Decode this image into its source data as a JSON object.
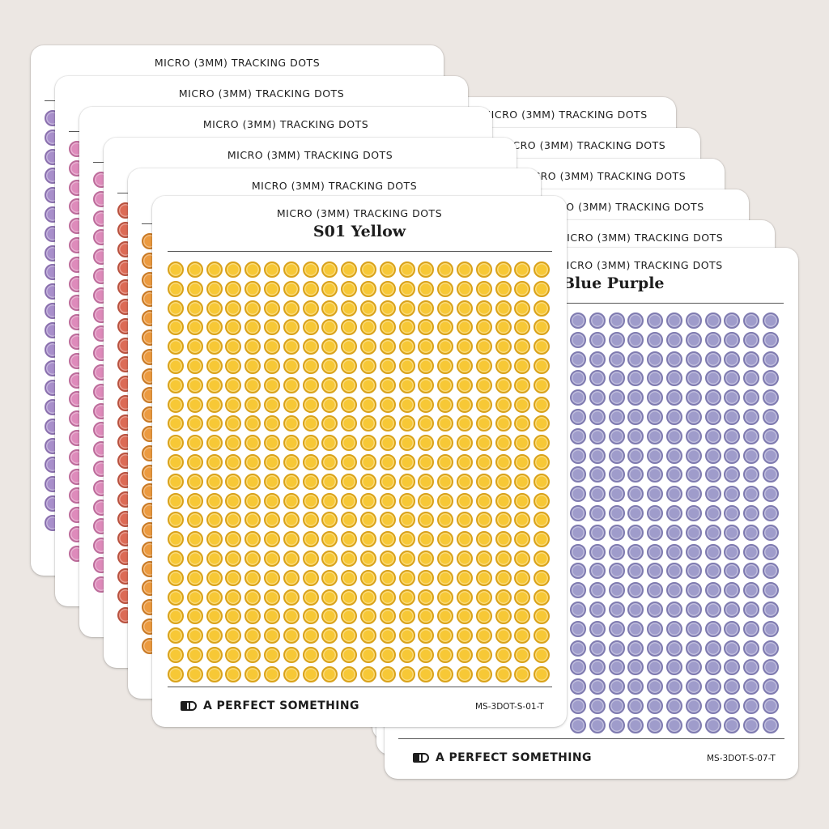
{
  "palette": {
    "yellow": {
      "fill": "#f7c836",
      "ring": "#d9a21b"
    },
    "blue_purple": {
      "fill": "#9f9ccb",
      "ring": "#7f7bb0"
    },
    "orange": {
      "fill": "#ec9a3f",
      "ring": "#c97a26"
    },
    "red": {
      "fill": "#dc6b56",
      "ring": "#b9523f"
    },
    "pink": {
      "fill": "#de8bbb",
      "ring": "#bd6c9b"
    },
    "purple": {
      "fill": "#a88fcb",
      "ring": "#8a70ae"
    }
  },
  "back_sheets_right": [
    {
      "subtitle": "MICRO (3MM) TRACKING DOTS"
    },
    {
      "subtitle": "MICRO (3MM) TRACKING DOTS"
    },
    {
      "subtitle": "MICRO (3MM) TRACKING DOTS"
    },
    {
      "subtitle": "MICRO (3MM) TRACKING DOTS"
    },
    {
      "subtitle": "MICRO (3MM) TRACKING DOTS"
    }
  ],
  "back_sheets_left": [
    {
      "subtitle": "MICRO (3MM) TRACKING DOTS",
      "color": "purple"
    },
    {
      "subtitle": "MICRO (3MM) TRACKING DOTS",
      "color": "pink"
    },
    {
      "subtitle": "MICRO (3MM) TRACKING DOTS",
      "color": "pink"
    },
    {
      "subtitle": "MICRO (3MM) TRACKING DOTS",
      "color": "red"
    },
    {
      "subtitle": "MICRO (3MM) TRACKING DOTS",
      "color": "orange"
    }
  ],
  "front_right": {
    "subtitle": "MICRO (3MM) TRACKING DOTS",
    "title": "Blue Purple",
    "brand": "A PERFECT SOMETHING",
    "code": "MS-3DOT-S-07-T",
    "color": "blue_purple"
  },
  "front_left": {
    "subtitle": "MICRO (3MM) TRACKING DOTS",
    "title": "S01 Yellow",
    "brand": "A PERFECT SOMETHING",
    "code": "MS-3DOT-S-01-T",
    "color": "yellow"
  }
}
